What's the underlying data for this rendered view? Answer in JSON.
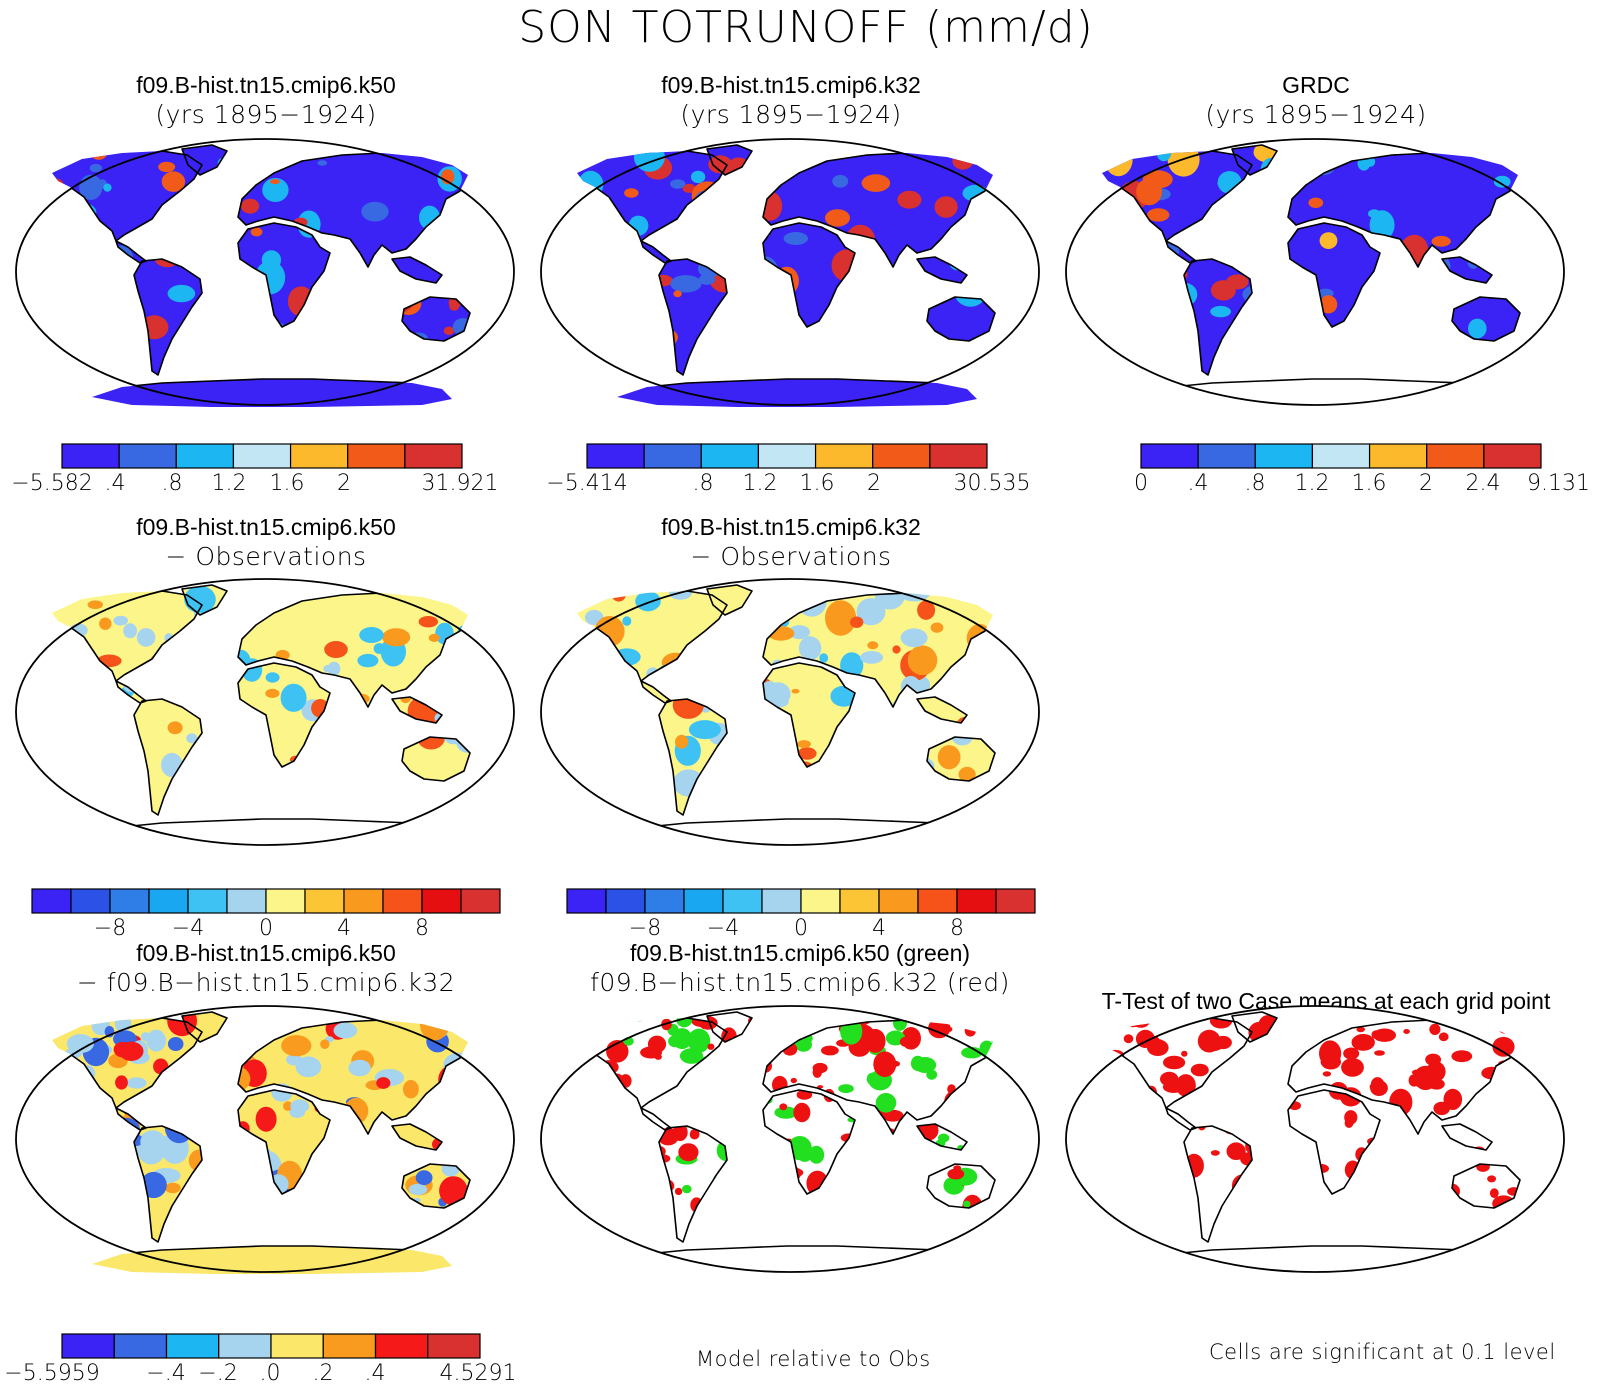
{
  "figure": {
    "title": "SON TOTRUNOFF (mm/d)"
  },
  "colors": {
    "abs_scale": [
      "#3b22f5",
      "#3868e2",
      "#1cb6f3",
      "#c3e6f5",
      "#fbb92b",
      "#f25a1a",
      "#d8312f"
    ],
    "diff_scale": [
      "#3b22f5",
      "#2c51e6",
      "#2f7ee8",
      "#1aa7f1",
      "#3ec2f4",
      "#a6d4ef",
      "#fcf58a",
      "#fcc535",
      "#f9991e",
      "#f5531a",
      "#e50f11",
      "#d8312f"
    ],
    "test_scale": [
      "#3b22f5",
      "#3868e2",
      "#1cb6f3",
      "#a6d4ef",
      "#fbe76a",
      "#f99b1e",
      "#f51919",
      "#d8312f"
    ],
    "significance": {
      "case1_green": "#22e01f",
      "case2_red": "#ee1111"
    },
    "land_outline": "#000000",
    "ocean": "#ffffff"
  },
  "panels": [
    {
      "id": "k50",
      "line1": "f09.B-hist.tn15.cmip6.k50",
      "line2": "(yrs 1895−1924)",
      "colorbar": "abs_scale",
      "colorbar_labels": [
        "−5.582",
        ".4",
        ".8",
        "1.2",
        "1.6",
        "2",
        "31.921"
      ],
      "field": "model"
    },
    {
      "id": "k32",
      "line1": "f09.B-hist.tn15.cmip6.k32",
      "line2": "(yrs 1895−1924)",
      "colorbar": "abs_scale",
      "colorbar_labels": [
        "−5.414",
        ".8",
        "1.2",
        "1.6",
        "2",
        "30.535"
      ],
      "field": "model"
    },
    {
      "id": "grdc",
      "line1": "GRDC",
      "line2": "(yrs 1895−1924)",
      "colorbar": "abs_scale",
      "colorbar_labels": [
        "0",
        ".4",
        ".8",
        "1.2",
        "1.6",
        "2",
        "2.4",
        "9.131"
      ],
      "field": "obs"
    },
    {
      "id": "k50-obs",
      "line1": "f09.B-hist.tn15.cmip6.k50",
      "line2": "− Observations",
      "colorbar": "diff_scale",
      "colorbar_labels": [
        "−8",
        "−4",
        "0",
        "4",
        "8"
      ],
      "field": "bias"
    },
    {
      "id": "k32-obs",
      "line1": "f09.B-hist.tn15.cmip6.k32",
      "line2": "− Observations",
      "colorbar": "diff_scale",
      "colorbar_labels": [
        "−8",
        "−4",
        "0",
        "4",
        "8"
      ],
      "field": "bias"
    },
    {
      "id": "k50-k32",
      "line1": "f09.B-hist.tn15.cmip6.k50",
      "line2": "− f09.B−hist.tn15.cmip6.k32",
      "colorbar": "test_scale",
      "colorbar_labels": [
        "−5.5959",
        "−.4",
        "−.2",
        ".0",
        ".2",
        ".4",
        "4.5291"
      ],
      "field": "casediff"
    },
    {
      "id": "rel-obs",
      "line1": "f09.B-hist.tn15.cmip6.k50 (green)",
      "line2": "f09.B−hist.tn15.cmip6.k32 (red)",
      "note": "Model relative to Obs",
      "field": "greenred"
    },
    {
      "id": "ttest",
      "line1": "T-Test of two Case means at each grid point",
      "line2": "",
      "note": "Cells are significant at 0.1 level",
      "field": "ttest"
    }
  ]
}
